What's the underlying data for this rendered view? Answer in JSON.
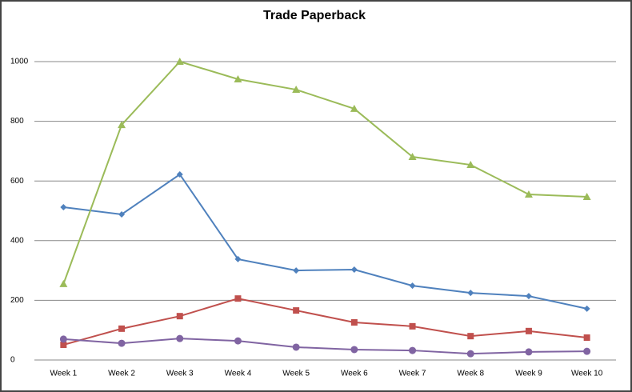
{
  "chart_data": {
    "type": "line",
    "title": "Trade Paperback",
    "categories": [
      "Week 1",
      "Week 2",
      "Week 3",
      "Week 4",
      "Week 5",
      "Week 6",
      "Week 7",
      "Week 8",
      "Week 9",
      "Week 10"
    ],
    "series": [
      {
        "color": "#4f81bd",
        "marker": "diamond",
        "values": [
          512,
          488,
          622,
          338,
          300,
          303,
          249,
          225,
          214,
          172
        ]
      },
      {
        "color": "#c0504d",
        "marker": "square",
        "values": [
          51,
          105,
          147,
          206,
          166,
          126,
          113,
          80,
          97,
          75
        ]
      },
      {
        "color": "#9bbb59",
        "marker": "triangle",
        "values": [
          255,
          788,
          1000,
          941,
          906,
          842,
          681,
          654,
          555,
          547
        ]
      },
      {
        "color": "#8064a2",
        "marker": "circle",
        "values": [
          70,
          56,
          72,
          64,
          43,
          35,
          32,
          21,
          27,
          29
        ]
      }
    ],
    "ylim": [
      0,
      1000
    ],
    "yticks": [
      0,
      200,
      400,
      600,
      800,
      1000
    ],
    "grid": true
  }
}
